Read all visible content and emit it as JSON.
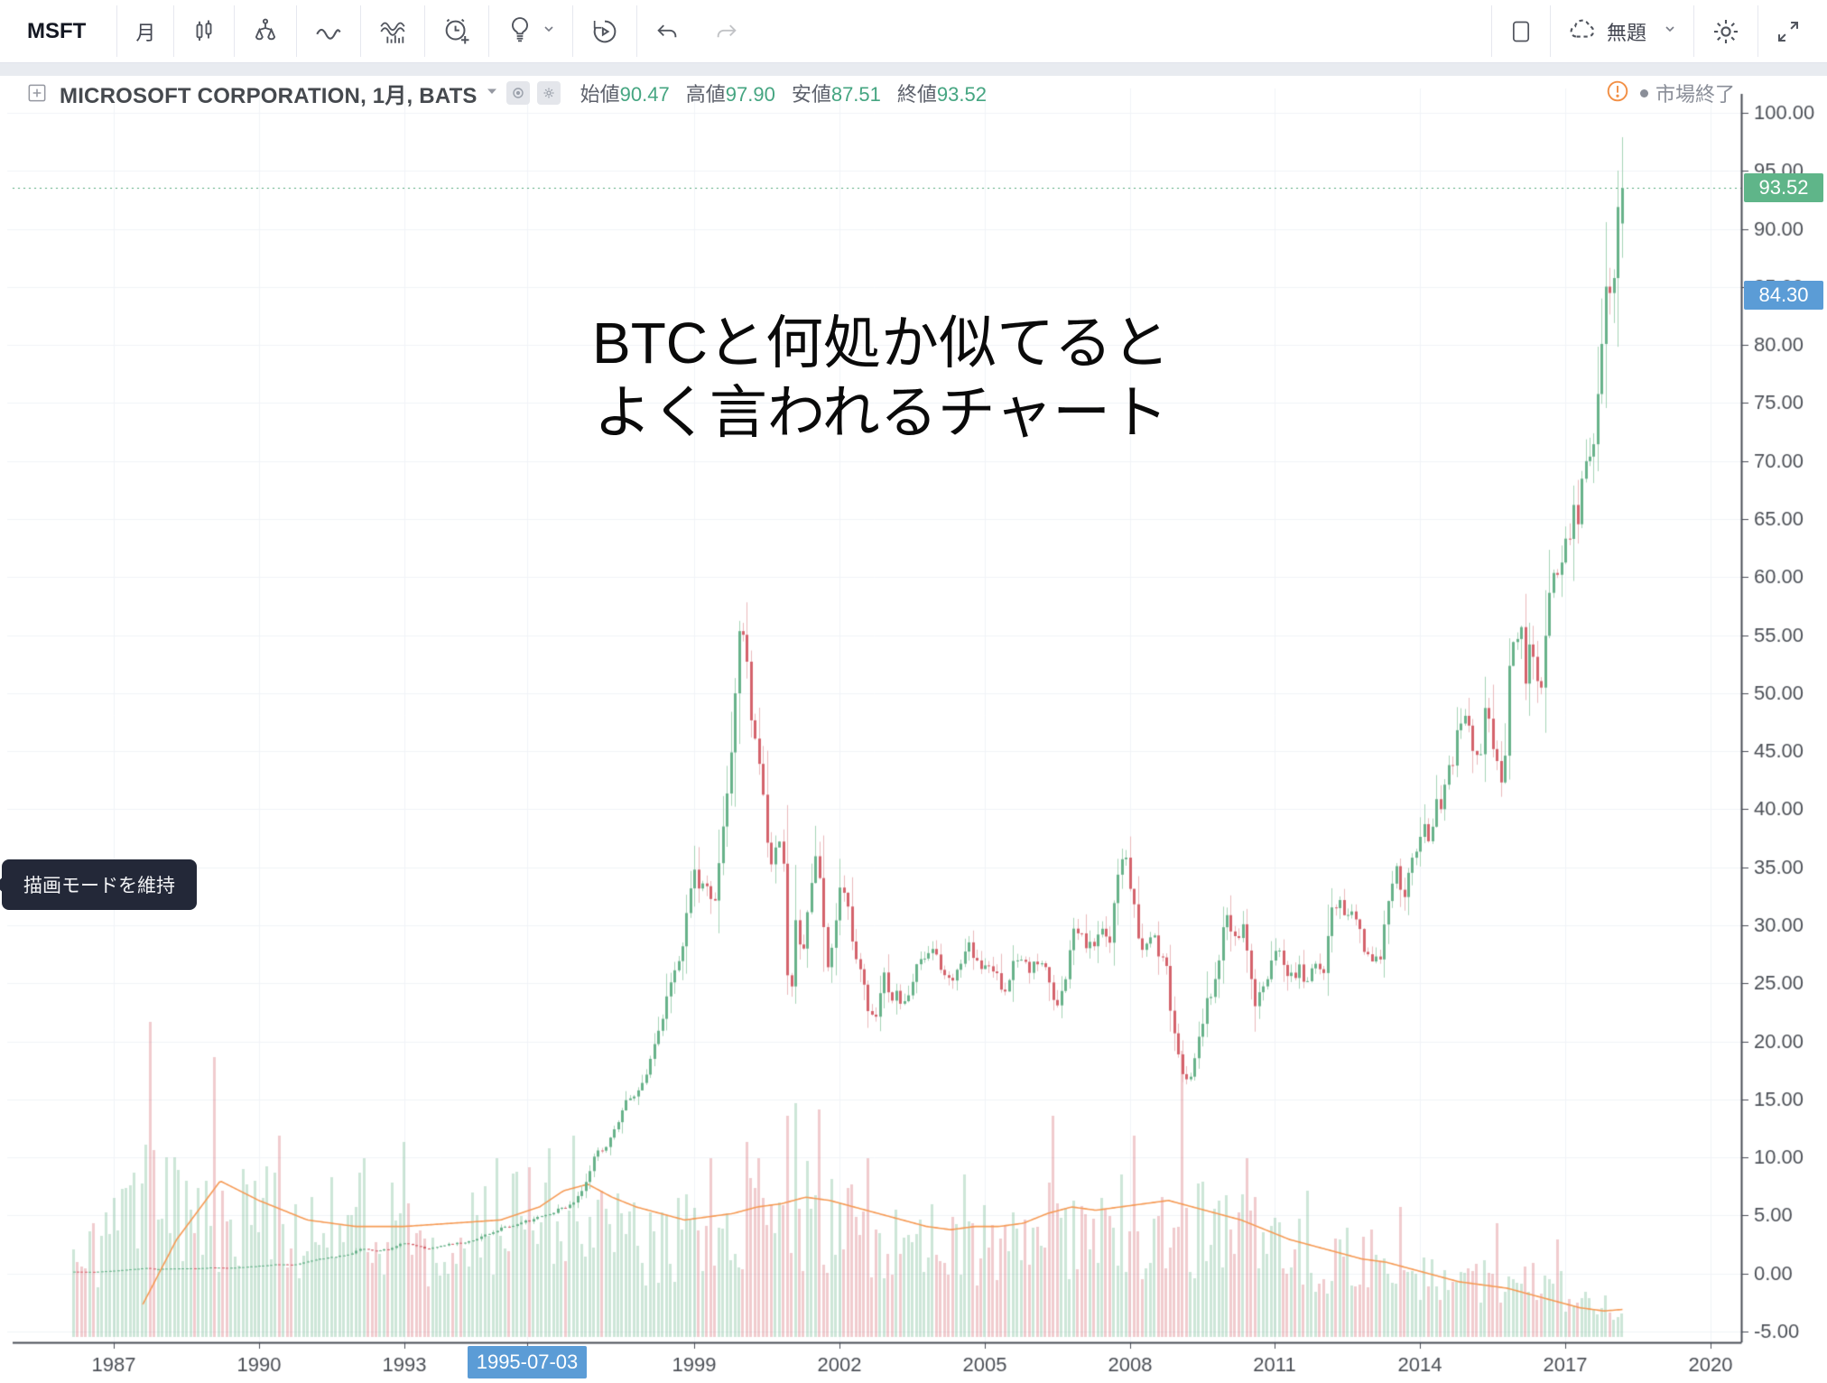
{
  "toolbar": {
    "symbol": "MSFT",
    "interval": "月",
    "layout_title": "無題",
    "icons": [
      "candlestick-icon",
      "compare-icon",
      "line-wave-icon",
      "indicators-icon",
      "alert-icon",
      "idea-bulb-icon",
      "replay-icon",
      "undo-icon",
      "redo-icon",
      "layout-icon",
      "cloud-save-icon",
      "settings-gear-icon",
      "fullscreen-icon"
    ]
  },
  "header": {
    "title": "MICROSOFT CORPORATION, 1月, BATS",
    "ohlc": [
      {
        "label": "始値",
        "value": "90.47"
      },
      {
        "label": "高値",
        "value": "97.90"
      },
      {
        "label": "安値",
        "value": "87.51"
      },
      {
        "label": "終値",
        "value": "93.52"
      }
    ],
    "market_status": "市場終了"
  },
  "annotation": {
    "line1": "BTCと何処か似てると",
    "line2": "よく言われるチャート"
  },
  "tooltip": {
    "text": "描画モードを維持"
  },
  "axis": {
    "price_ticks": [
      "100.00",
      "95.00",
      "90.00",
      "85.00",
      "80.00",
      "75.00",
      "70.00",
      "65.00",
      "60.00",
      "55.00",
      "50.00",
      "45.00",
      "40.00",
      "35.00",
      "30.00",
      "25.00",
      "20.00",
      "15.00",
      "10.00",
      "5.00",
      "0.00",
      "-5.00"
    ],
    "time_ticks": [
      "1987",
      "1990",
      "1993",
      "1995-07-03",
      "1999",
      "2002",
      "2005",
      "2008",
      "2011",
      "2014",
      "2017",
      "2020"
    ],
    "time_badge": "1995-07-03",
    "price_badge_green": "93.52",
    "price_badge_blue": "84.30"
  },
  "chart_data": {
    "type": "candlestick",
    "title": "MICROSOFT CORPORATION monthly (BATS), with volume and volume-MA overlay",
    "x_range": [
      1986.0,
      2021.3
    ],
    "x_tick_years": [
      1987,
      1990,
      1993,
      1995.54,
      1999,
      2002,
      2005,
      2008,
      2011,
      2014,
      2017,
      2020
    ],
    "y_range": [
      -5.9,
      103.2
    ],
    "y_tick_values": [
      100,
      95,
      90,
      85,
      80,
      75,
      70,
      65,
      60,
      55,
      50,
      45,
      40,
      35,
      30,
      25,
      20,
      15,
      10,
      5,
      0,
      -5
    ],
    "last_close_line": 93.52,
    "marked_price": 84.3,
    "data_start": 1986.17,
    "data_end": 2018.21,
    "last_candle": {
      "open": 90.47,
      "high": 97.9,
      "low": 87.51,
      "close": 93.52
    },
    "price_keyframes": [
      [
        1986.17,
        0.16
      ],
      [
        1986.6,
        0.14
      ],
      [
        1987.0,
        0.24
      ],
      [
        1987.4,
        0.38
      ],
      [
        1987.7,
        0.47
      ],
      [
        1987.85,
        0.36
      ],
      [
        1988.1,
        0.42
      ],
      [
        1988.4,
        0.45
      ],
      [
        1988.7,
        0.44
      ],
      [
        1989.0,
        0.51
      ],
      [
        1989.4,
        0.48
      ],
      [
        1989.8,
        0.6
      ],
      [
        1990.1,
        0.7
      ],
      [
        1990.4,
        0.8
      ],
      [
        1990.7,
        0.74
      ],
      [
        1991.0,
        1.04
      ],
      [
        1991.3,
        1.3
      ],
      [
        1991.6,
        1.45
      ],
      [
        1991.9,
        1.7
      ],
      [
        1992.1,
        2.2
      ],
      [
        1992.4,
        1.95
      ],
      [
        1992.7,
        2.1
      ],
      [
        1992.95,
        2.67
      ],
      [
        1993.2,
        2.45
      ],
      [
        1993.45,
        2.15
      ],
      [
        1993.7,
        2.3
      ],
      [
        1993.95,
        2.52
      ],
      [
        1994.3,
        2.7
      ],
      [
        1994.6,
        3.2
      ],
      [
        1994.95,
        3.81
      ],
      [
        1995.3,
        4.2
      ],
      [
        1995.54,
        4.52
      ],
      [
        1995.8,
        4.85
      ],
      [
        1996.0,
        5.2
      ],
      [
        1996.2,
        5.5
      ],
      [
        1996.45,
        5.9
      ],
      [
        1996.7,
        7.4
      ],
      [
        1996.95,
        10.31
      ],
      [
        1997.2,
        11.0
      ],
      [
        1997.45,
        13.5
      ],
      [
        1997.7,
        15.5
      ],
      [
        1997.95,
        16.12
      ],
      [
        1998.2,
        20.0
      ],
      [
        1998.45,
        24.0
      ],
      [
        1998.7,
        27.0
      ],
      [
        1998.95,
        34.67
      ],
      [
        1999.2,
        33.0
      ],
      [
        1999.45,
        32.0
      ],
      [
        1999.6,
        40.0
      ],
      [
        1999.8,
        46.0
      ],
      [
        1999.95,
        58.38
      ],
      [
        2000.05,
        53.0
      ],
      [
        2000.2,
        47.0
      ],
      [
        2000.37,
        43.5
      ],
      [
        2000.45,
        39.0
      ],
      [
        2000.6,
        34.9
      ],
      [
        2000.7,
        38.0
      ],
      [
        2000.85,
        34.3
      ],
      [
        2000.95,
        21.7
      ],
      [
        2001.1,
        30.5
      ],
      [
        2001.25,
        27.4
      ],
      [
        2001.4,
        33.9
      ],
      [
        2001.5,
        36.5
      ],
      [
        2001.65,
        31.2
      ],
      [
        2001.75,
        25.7
      ],
      [
        2001.9,
        29.0
      ],
      [
        2001.99,
        33.1
      ],
      [
        2002.15,
        31.8
      ],
      [
        2002.3,
        28.0
      ],
      [
        2002.45,
        25.5
      ],
      [
        2002.6,
        22.5
      ],
      [
        2002.75,
        21.9
      ],
      [
        2002.9,
        26.7
      ],
      [
        2003.05,
        23.7
      ],
      [
        2003.2,
        24.2
      ],
      [
        2003.35,
        23.0
      ],
      [
        2003.5,
        25.6
      ],
      [
        2003.7,
        27.9
      ],
      [
        2003.95,
        27.4
      ],
      [
        2004.2,
        25.0
      ],
      [
        2004.45,
        26.1
      ],
      [
        2004.6,
        28.6
      ],
      [
        2004.8,
        27.4
      ],
      [
        2004.95,
        26.7
      ],
      [
        2005.2,
        25.4
      ],
      [
        2005.45,
        24.8
      ],
      [
        2005.6,
        27.4
      ],
      [
        2005.95,
        26.2
      ],
      [
        2006.2,
        27.0
      ],
      [
        2006.37,
        24.2
      ],
      [
        2006.45,
        23.3
      ],
      [
        2006.6,
        24.3
      ],
      [
        2006.8,
        28.7
      ],
      [
        2006.95,
        29.9
      ],
      [
        2007.1,
        28.2
      ],
      [
        2007.25,
        27.9
      ],
      [
        2007.45,
        29.5
      ],
      [
        2007.6,
        29.0
      ],
      [
        2007.8,
        36.8
      ],
      [
        2007.9,
        35.5
      ],
      [
        2008.05,
        32.6
      ],
      [
        2008.2,
        27.2
      ],
      [
        2008.37,
        28.5
      ],
      [
        2008.45,
        29.1
      ],
      [
        2008.6,
        27.3
      ],
      [
        2008.75,
        26.7
      ],
      [
        2008.85,
        22.3
      ],
      [
        2008.95,
        19.4
      ],
      [
        2009.1,
        17.1
      ],
      [
        2009.2,
        16.2
      ],
      [
        2009.3,
        18.4
      ],
      [
        2009.45,
        20.9
      ],
      [
        2009.6,
        23.5
      ],
      [
        2009.75,
        24.7
      ],
      [
        2009.9,
        29.4
      ],
      [
        2009.99,
        30.5
      ],
      [
        2010.2,
        28.7
      ],
      [
        2010.37,
        30.5
      ],
      [
        2010.45,
        25.8
      ],
      [
        2010.6,
        23.0
      ],
      [
        2010.75,
        24.5
      ],
      [
        2010.9,
        26.9
      ],
      [
        2010.99,
        27.9
      ],
      [
        2011.2,
        26.6
      ],
      [
        2011.37,
        25.4
      ],
      [
        2011.5,
        26.0
      ],
      [
        2011.65,
        25.1
      ],
      [
        2011.8,
        26.6
      ],
      [
        2011.99,
        26.0
      ],
      [
        2012.2,
        31.7
      ],
      [
        2012.37,
        32.0
      ],
      [
        2012.5,
        30.6
      ],
      [
        2012.65,
        30.8
      ],
      [
        2012.8,
        28.5
      ],
      [
        2012.99,
        26.7
      ],
      [
        2013.2,
        27.8
      ],
      [
        2013.37,
        33.0
      ],
      [
        2013.5,
        34.5
      ],
      [
        2013.62,
        31.8
      ],
      [
        2013.8,
        35.4
      ],
      [
        2013.99,
        37.4
      ],
      [
        2014.2,
        38.3
      ],
      [
        2014.37,
        40.4
      ],
      [
        2014.5,
        41.7
      ],
      [
        2014.7,
        45.4
      ],
      [
        2014.9,
        47.8
      ],
      [
        2014.99,
        46.4
      ],
      [
        2015.2,
        43.8
      ],
      [
        2015.37,
        48.6
      ],
      [
        2015.5,
        44.2
      ],
      [
        2015.62,
        43.5
      ],
      [
        2015.7,
        40.0
      ],
      [
        2015.85,
        52.6
      ],
      [
        2015.99,
        55.5
      ],
      [
        2016.1,
        55.1
      ],
      [
        2016.15,
        49.8
      ],
      [
        2016.3,
        55.2
      ],
      [
        2016.45,
        49.9
      ],
      [
        2016.55,
        51.2
      ],
      [
        2016.62,
        56.7
      ],
      [
        2016.8,
        59.9
      ],
      [
        2016.99,
        62.1
      ],
      [
        2017.1,
        63.7
      ],
      [
        2017.25,
        65.9
      ],
      [
        2017.4,
        68.5
      ],
      [
        2017.55,
        72.7
      ],
      [
        2017.7,
        74.8
      ],
      [
        2017.8,
        83.2
      ],
      [
        2017.9,
        84.2
      ],
      [
        2017.99,
        85.5
      ],
      [
        2018.08,
        91.0
      ],
      [
        2018.21,
        93.52
      ]
    ],
    "volume_env_keyframes": [
      [
        1986.17,
        0.25
      ],
      [
        1987.0,
        0.35
      ],
      [
        1987.8,
        0.55
      ],
      [
        1988.5,
        0.4
      ],
      [
        1989.5,
        0.45
      ],
      [
        1990.5,
        0.4
      ],
      [
        1991.5,
        0.38
      ],
      [
        1992.5,
        0.4
      ],
      [
        1993.5,
        0.34
      ],
      [
        1994.5,
        0.36
      ],
      [
        1995.5,
        0.4
      ],
      [
        1996.5,
        0.42
      ],
      [
        1997.5,
        0.36
      ],
      [
        1998.5,
        0.34
      ],
      [
        1999.5,
        0.38
      ],
      [
        2000.5,
        0.42
      ],
      [
        2001.5,
        0.45
      ],
      [
        2002.5,
        0.38
      ],
      [
        2003.5,
        0.32
      ],
      [
        2004.5,
        0.31
      ],
      [
        2005.5,
        0.32
      ],
      [
        2006.5,
        0.38
      ],
      [
        2007.5,
        0.36
      ],
      [
        2008.5,
        0.4
      ],
      [
        2009.5,
        0.38
      ],
      [
        2010.5,
        0.34
      ],
      [
        2011.5,
        0.3
      ],
      [
        2012.5,
        0.27
      ],
      [
        2013.5,
        0.26
      ],
      [
        2014.5,
        0.24
      ],
      [
        2015.5,
        0.22
      ],
      [
        2016.5,
        0.18
      ],
      [
        2017.5,
        0.13
      ],
      [
        2018.21,
        0.1
      ]
    ],
    "volume_spikes": [
      [
        1987.75,
        0.97
      ],
      [
        1989.1,
        0.86
      ],
      [
        1990.4,
        0.62
      ],
      [
        1992.2,
        0.55
      ],
      [
        1993.0,
        0.6
      ],
      [
        1994.9,
        0.55
      ],
      [
        1996.0,
        0.58
      ],
      [
        1996.5,
        0.62
      ],
      [
        1999.3,
        0.55
      ],
      [
        2000.05,
        0.6
      ],
      [
        2000.3,
        0.55
      ],
      [
        2000.95,
        0.68
      ],
      [
        2001.05,
        0.72
      ],
      [
        2001.55,
        0.7
      ],
      [
        2002.6,
        0.55
      ],
      [
        2004.6,
        0.5
      ],
      [
        2006.4,
        0.68
      ],
      [
        2007.85,
        0.5
      ],
      [
        2008.05,
        0.62
      ],
      [
        2009.05,
        0.88
      ],
      [
        2010.4,
        0.55
      ],
      [
        2011.7,
        0.45
      ],
      [
        2013.6,
        0.4
      ],
      [
        2015.6,
        0.35
      ],
      [
        2016.8,
        0.3
      ]
    ],
    "volume_ma_keyframes": [
      [
        1987.6,
        0.1
      ],
      [
        1988.3,
        0.3
      ],
      [
        1989.2,
        0.48
      ],
      [
        1990.0,
        0.42
      ],
      [
        1991.0,
        0.36
      ],
      [
        1992.0,
        0.34
      ],
      [
        1993.0,
        0.34
      ],
      [
        1994.0,
        0.35
      ],
      [
        1995.0,
        0.36
      ],
      [
        1995.8,
        0.4
      ],
      [
        1996.3,
        0.45
      ],
      [
        1996.8,
        0.47
      ],
      [
        1997.3,
        0.43
      ],
      [
        1997.8,
        0.4
      ],
      [
        1998.3,
        0.38
      ],
      [
        1998.8,
        0.36
      ],
      [
        1999.3,
        0.37
      ],
      [
        1999.8,
        0.38
      ],
      [
        2000.3,
        0.4
      ],
      [
        2000.8,
        0.41
      ],
      [
        2001.3,
        0.43
      ],
      [
        2001.8,
        0.42
      ],
      [
        2002.3,
        0.4
      ],
      [
        2002.8,
        0.38
      ],
      [
        2003.3,
        0.36
      ],
      [
        2003.8,
        0.34
      ],
      [
        2004.3,
        0.33
      ],
      [
        2004.8,
        0.34
      ],
      [
        2005.3,
        0.34
      ],
      [
        2005.8,
        0.35
      ],
      [
        2006.3,
        0.38
      ],
      [
        2006.8,
        0.4
      ],
      [
        2007.3,
        0.39
      ],
      [
        2007.8,
        0.4
      ],
      [
        2008.3,
        0.41
      ],
      [
        2008.8,
        0.42
      ],
      [
        2009.3,
        0.4
      ],
      [
        2009.8,
        0.38
      ],
      [
        2010.3,
        0.36
      ],
      [
        2010.8,
        0.33
      ],
      [
        2011.3,
        0.3
      ],
      [
        2011.8,
        0.28
      ],
      [
        2012.3,
        0.26
      ],
      [
        2012.8,
        0.24
      ],
      [
        2013.3,
        0.23
      ],
      [
        2013.8,
        0.21
      ],
      [
        2014.3,
        0.19
      ],
      [
        2014.8,
        0.17
      ],
      [
        2015.3,
        0.16
      ],
      [
        2015.8,
        0.15
      ],
      [
        2016.3,
        0.13
      ],
      [
        2016.8,
        0.11
      ],
      [
        2017.3,
        0.09
      ],
      [
        2017.8,
        0.08
      ],
      [
        2018.21,
        0.085
      ]
    ],
    "colors": {
      "up_body": "#67b28a",
      "up_wick": "#a5d3b6",
      "down_body": "#d4626b",
      "down_wick": "#eab9bc",
      "vol_up": "rgba(103,178,138,0.33)",
      "vol_down": "rgba(212,98,107,0.33)",
      "volume_ma": "#f69a54",
      "close_line": "#53a87c",
      "grid": "#f1f3f8",
      "axis_line": "#4a4e57",
      "axis_text": "#4c5057",
      "badge_green": "#5fb589",
      "badge_blue": "#5b9cd6",
      "status_orange": "#f28f45"
    },
    "legend_note": "orange line = volume moving average; pale green/red columns = monthly volume"
  }
}
